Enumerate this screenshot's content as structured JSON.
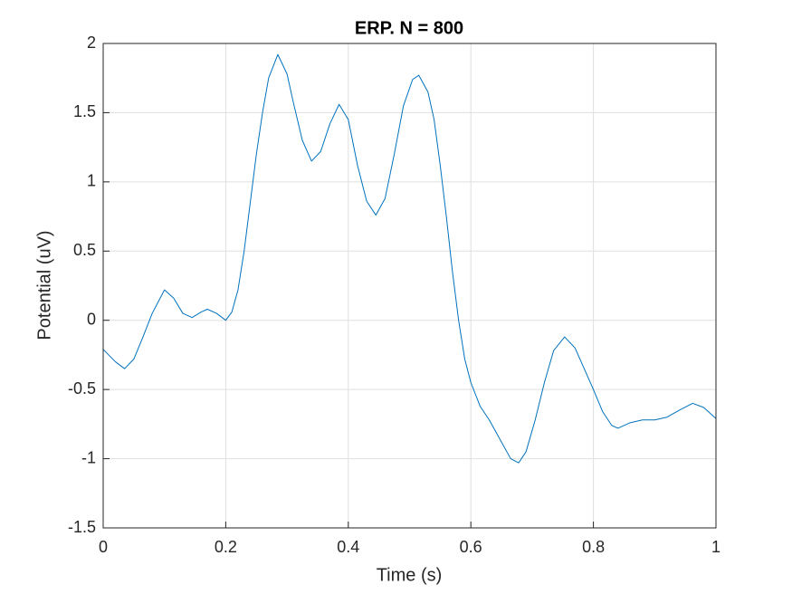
{
  "chart_data": {
    "type": "line",
    "title": "ERP. N = 800",
    "xlabel": "Time (s)",
    "ylabel": "Potential (uV)",
    "x": [
      0,
      0.02,
      0.035,
      0.05,
      0.065,
      0.08,
      0.1,
      0.115,
      0.13,
      0.145,
      0.16,
      0.17,
      0.185,
      0.2,
      0.21,
      0.22,
      0.23,
      0.24,
      0.25,
      0.26,
      0.27,
      0.285,
      0.3,
      0.31,
      0.325,
      0.34,
      0.355,
      0.37,
      0.385,
      0.4,
      0.415,
      0.43,
      0.445,
      0.46,
      0.475,
      0.49,
      0.505,
      0.515,
      0.53,
      0.54,
      0.55,
      0.56,
      0.57,
      0.58,
      0.59,
      0.6,
      0.615,
      0.63,
      0.65,
      0.665,
      0.678,
      0.69,
      0.705,
      0.72,
      0.735,
      0.753,
      0.77,
      0.785,
      0.8,
      0.815,
      0.83,
      0.84,
      0.86,
      0.88,
      0.9,
      0.92,
      0.94,
      0.962,
      0.98,
      1
    ],
    "series": [
      {
        "name": "ERP",
        "color": "#0072bd",
        "values": [
          -0.21,
          -0.3,
          -0.35,
          -0.28,
          -0.12,
          0.05,
          0.22,
          0.16,
          0.05,
          0.02,
          0.06,
          0.08,
          0.05,
          0.0,
          0.06,
          0.22,
          0.5,
          0.85,
          1.2,
          1.5,
          1.75,
          1.92,
          1.78,
          1.58,
          1.3,
          1.15,
          1.22,
          1.42,
          1.56,
          1.45,
          1.12,
          0.86,
          0.76,
          0.88,
          1.2,
          1.55,
          1.74,
          1.77,
          1.65,
          1.45,
          1.12,
          0.75,
          0.35,
          0.0,
          -0.28,
          -0.45,
          -0.62,
          -0.72,
          -0.88,
          -1.0,
          -1.03,
          -0.95,
          -0.72,
          -0.45,
          -0.22,
          -0.12,
          -0.2,
          -0.35,
          -0.5,
          -0.66,
          -0.76,
          -0.78,
          -0.74,
          -0.72,
          -0.72,
          -0.7,
          -0.65,
          -0.6,
          -0.63,
          -0.71
        ]
      }
    ],
    "xlim": [
      0,
      1
    ],
    "xticks": [
      0,
      0.2,
      0.4,
      0.6,
      0.8,
      1
    ],
    "ylim": [
      -1.5,
      2
    ],
    "yticks": [
      -1.5,
      -1,
      -0.5,
      0,
      0.5,
      1,
      1.5,
      2
    ],
    "grid": true
  }
}
